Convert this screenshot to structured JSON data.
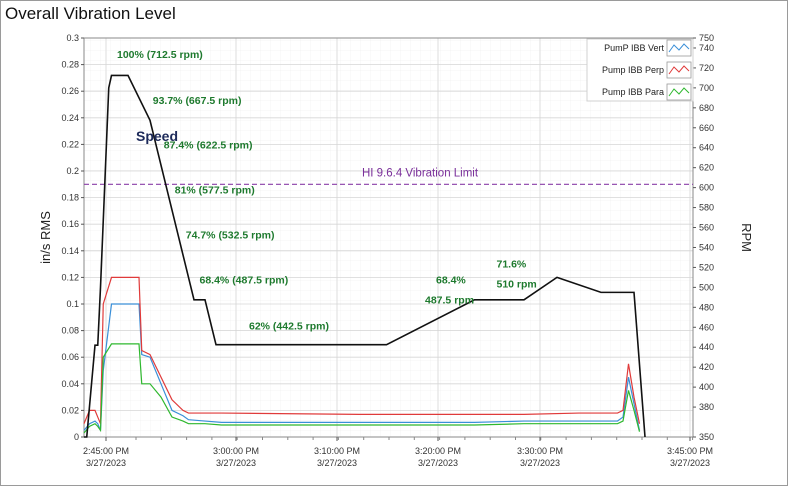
{
  "title": "Overall Vibration Level",
  "chart_data": {
    "type": "line",
    "title": "Overall Vibration Level",
    "ylabel": "in/s RMS",
    "y2label": "RPM",
    "ylim": [
      0,
      0.3
    ],
    "y2lim": [
      350,
      750
    ],
    "yticks": [
      "0",
      "0.02",
      "0.04",
      "0.06",
      "0.08",
      "0.1",
      "0.12",
      "0.14",
      "0.16",
      "0.18",
      "0.2",
      "0.22",
      "0.24",
      "0.26",
      "0.28",
      "0.3"
    ],
    "y2ticks": [
      "350",
      "380",
      "400",
      "420",
      "440",
      "460",
      "480",
      "500",
      "520",
      "540",
      "560",
      "580",
      "600",
      "620",
      "640",
      "660",
      "680",
      "700",
      "720",
      "740",
      "750"
    ],
    "xticks": [
      {
        "time": "2:45:00 PM",
        "date": "3/27/2023"
      },
      {
        "time": "3:00:00 PM",
        "date": "3/27/2023"
      },
      {
        "time": "3:10:00 PM",
        "date": "3/27/2023"
      },
      {
        "time": "3:20:00 PM",
        "date": "3/27/2023"
      },
      {
        "time": "3:30:00 PM",
        "date": "3/27/2023"
      },
      {
        "time": "3:45:00 PM",
        "date": "3/27/2023"
      }
    ],
    "legend": [
      {
        "name": "PumP IBB Vert",
        "color": "#3a8fd8"
      },
      {
        "name": "Pump IBB Perp",
        "color": "#e03a3a"
      },
      {
        "name": "Pump IBB Para",
        "color": "#2fb82f"
      }
    ],
    "speed_label": "Speed",
    "limit": {
      "label": "HI 9.6.4 Vibration Limit",
      "value": 0.19
    },
    "speed_series": {
      "name": "Speed",
      "color": "#111111",
      "x_min": [
        0,
        0.5,
        2,
        2.5,
        3,
        4.5,
        5,
        8,
        12,
        14,
        16,
        18,
        20,
        22,
        24,
        34,
        37,
        55,
        71,
        80,
        86,
        94,
        100,
        102
      ],
      "rpm": [
        350,
        350,
        442,
        442,
        500,
        700,
        712.5,
        712.5,
        667.5,
        622.5,
        577.5,
        532.5,
        487.5,
        487.5,
        442.5,
        442.5,
        442.5,
        442.5,
        487.5,
        487.5,
        510,
        495,
        495,
        350
      ]
    },
    "vibration_series": [
      {
        "name": "PumP IBB Vert",
        "x_min": [
          0,
          1,
          2,
          2.5,
          3,
          3.5,
          5,
          8,
          10,
          10.5,
          12,
          14,
          16,
          18,
          19,
          22,
          25,
          50,
          71,
          80,
          90,
          93,
          97,
          98,
          99,
          100,
          101
        ],
        "values": [
          0.005,
          0.01,
          0.012,
          0.01,
          0.005,
          0.05,
          0.1,
          0.1,
          0.1,
          0.062,
          0.06,
          0.04,
          0.02,
          0.016,
          0.013,
          0.012,
          0.011,
          0.011,
          0.011,
          0.012,
          0.012,
          0.012,
          0.012,
          0.015,
          0.045,
          0.025,
          0.005
        ]
      },
      {
        "name": "Pump IBB Perp",
        "x_min": [
          0,
          1,
          2,
          2.5,
          3,
          3.5,
          5,
          8,
          10,
          10.5,
          12,
          14,
          16,
          18,
          19,
          22,
          25,
          50,
          71,
          80,
          90,
          93,
          97,
          98,
          99,
          100,
          101
        ],
        "values": [
          0.01,
          0.02,
          0.02,
          0.015,
          0.01,
          0.1,
          0.12,
          0.12,
          0.12,
          0.065,
          0.062,
          0.045,
          0.028,
          0.02,
          0.018,
          0.018,
          0.018,
          0.017,
          0.017,
          0.017,
          0.018,
          0.018,
          0.018,
          0.02,
          0.055,
          0.03,
          0.01
        ]
      },
      {
        "name": "Pump IBB Para",
        "x_min": [
          0,
          1,
          2,
          2.5,
          3,
          3.5,
          5,
          8,
          10,
          10.5,
          12,
          14,
          16,
          18,
          19,
          22,
          25,
          50,
          71,
          80,
          90,
          93,
          97,
          98,
          99,
          100,
          101
        ],
        "values": [
          0.003,
          0.008,
          0.01,
          0.008,
          0.005,
          0.06,
          0.07,
          0.07,
          0.07,
          0.04,
          0.04,
          0.03,
          0.015,
          0.012,
          0.01,
          0.01,
          0.009,
          0.009,
          0.009,
          0.01,
          0.01,
          0.01,
          0.01,
          0.012,
          0.035,
          0.02,
          0.004
        ]
      }
    ],
    "annotations": [
      {
        "text": "100% (712.5 rpm)",
        "x_min": 6,
        "rpm": 730
      },
      {
        "text": "93.7% (667.5 rpm)",
        "x_min": 12.5,
        "rpm": 684
      },
      {
        "text": "87.4% (622.5 rpm)",
        "x_min": 14.5,
        "rpm": 639
      },
      {
        "text": "81% (577.5 rpm)",
        "x_min": 16.5,
        "rpm": 594
      },
      {
        "text": "74.7% (532.5 rpm)",
        "x_min": 18.5,
        "rpm": 549
      },
      {
        "text": "68.4% (487.5 rpm)",
        "x_min": 21,
        "rpm": 504
      },
      {
        "text": "62% (442.5 rpm)",
        "x_min": 30,
        "rpm": 458
      },
      {
        "text": "68.4%",
        "x_min": 64,
        "rpm": 504
      },
      {
        "text": "487.5 rpm",
        "x_min": 62,
        "rpm": 484
      },
      {
        "text": "71.6%",
        "x_min": 75,
        "rpm": 520
      },
      {
        "text": "510 rpm",
        "x_min": 75,
        "rpm": 500
      }
    ]
  }
}
